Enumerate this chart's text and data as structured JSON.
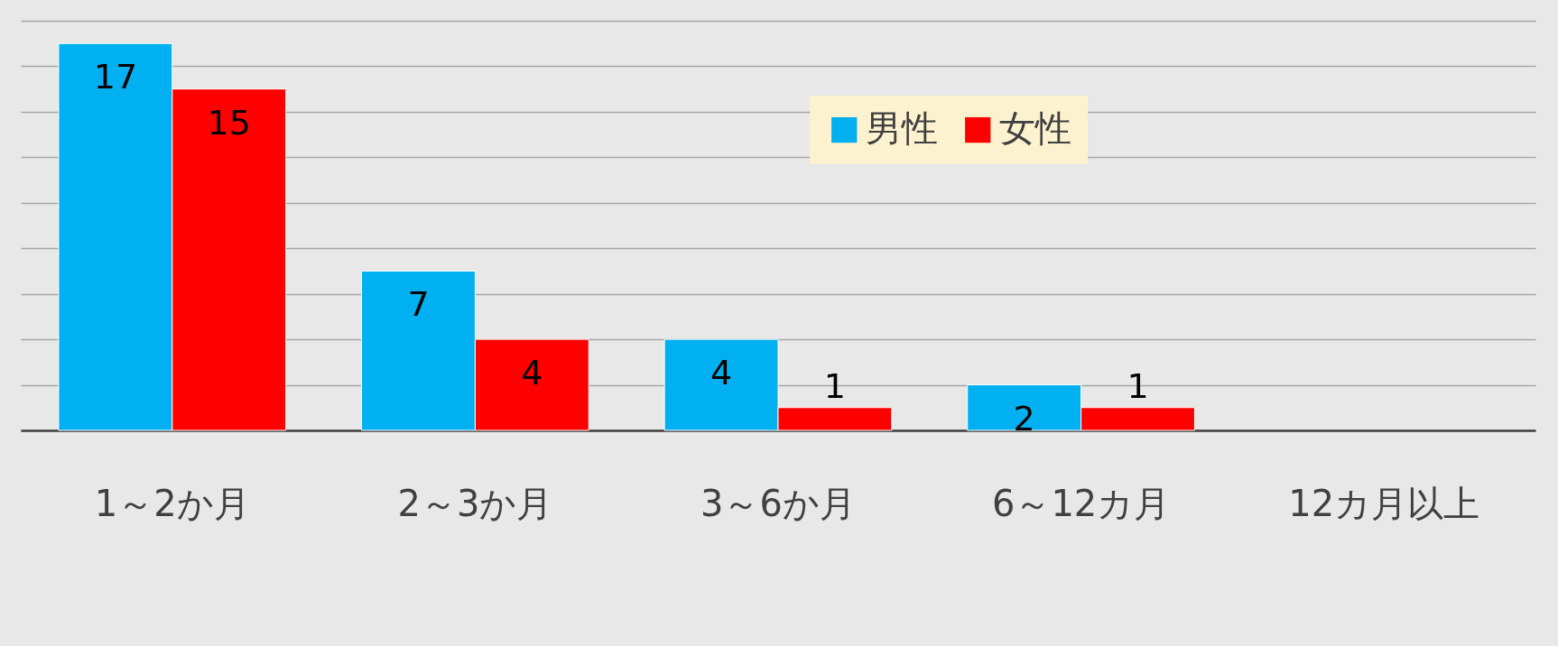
{
  "chart_data": {
    "type": "bar",
    "categories": [
      "1～2か月",
      "2～3か月",
      "3～6か月",
      "6～12カ月",
      "12カ月以上"
    ],
    "series": [
      {
        "name": "男性",
        "color": "#00b0f0",
        "values": [
          17,
          7,
          4,
          2,
          null
        ]
      },
      {
        "name": "女性",
        "color": "#ff0000",
        "values": [
          15,
          4,
          1,
          1,
          null
        ]
      }
    ],
    "ylim": [
      0,
      18
    ],
    "yticks": [
      {
        "value": 0,
        "label": null
      },
      {
        "value": 2,
        "label": null
      },
      {
        "value": 4,
        "label": null
      },
      {
        "value": 6,
        "label": null
      },
      {
        "value": 8,
        "label": null
      },
      {
        "value": 10,
        "label": null
      },
      {
        "value": 12,
        "label": null
      },
      {
        "value": 14,
        "label": null
      },
      {
        "value": 16,
        "label": null
      },
      {
        "value": 18,
        "label": null
      }
    ],
    "grid": "y",
    "legend": "top right",
    "data_labels": true,
    "tick_labels": "x"
  }
}
